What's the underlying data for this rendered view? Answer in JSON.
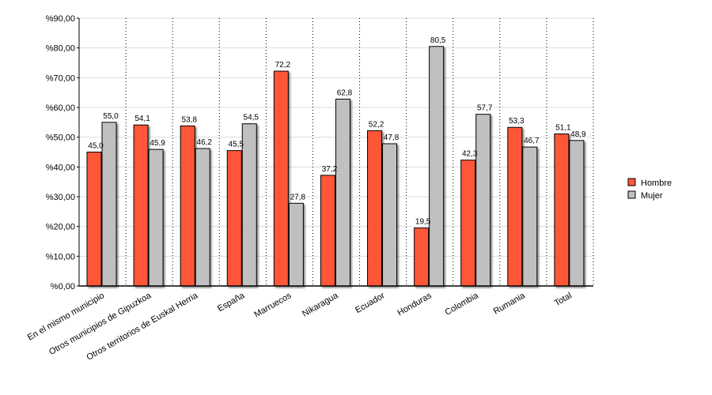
{
  "chart_data": {
    "type": "bar",
    "categories": [
      "En el mismo municipio",
      "Otros municipios de Gipuzkoa",
      "Otros territorios de Euskal Herria",
      "España",
      "Marruecos",
      "Nikaragua",
      "Ecuador",
      "Honduras",
      "Colombia",
      "Rumania",
      "Total"
    ],
    "series": [
      {
        "name": "Hombre",
        "color": "#ff5637",
        "values": [
          45.0,
          54.1,
          53.8,
          45.5,
          72.2,
          37.2,
          52.2,
          19.5,
          42.3,
          53.3,
          51.1
        ],
        "value_labels": [
          "45,0",
          "54,1",
          "53,8",
          "45,5",
          "72,2",
          "37,2",
          "52,2",
          "19,5",
          "42,3",
          "53,3",
          "51,1"
        ]
      },
      {
        "name": "Mujer",
        "color": "#c0c0c0",
        "values": [
          55.0,
          45.9,
          46.2,
          54.5,
          27.8,
          62.8,
          47.8,
          80.5,
          57.7,
          46.7,
          48.9
        ],
        "value_labels": [
          "55,0",
          "45,9",
          "46,2",
          "54,5",
          "27,8",
          "62,8",
          "47,8",
          "80,5",
          "57,7",
          "46,7",
          "48,9"
        ]
      }
    ],
    "ylim": [
      0,
      90
    ],
    "yticks": [
      {
        "value": 0,
        "label": "%0,00"
      },
      {
        "value": 10,
        "label": "%10,00"
      },
      {
        "value": 20,
        "label": "%20,00"
      },
      {
        "value": 30,
        "label": "%30,00"
      },
      {
        "value": 40,
        "label": "%40,00"
      },
      {
        "value": 50,
        "label": "%50,00"
      },
      {
        "value": 60,
        "label": "%60,00"
      },
      {
        "value": 70,
        "label": "%70,00"
      },
      {
        "value": 80,
        "label": "%80,00"
      },
      {
        "value": 90,
        "label": "%90,00"
      }
    ],
    "grid": true
  }
}
